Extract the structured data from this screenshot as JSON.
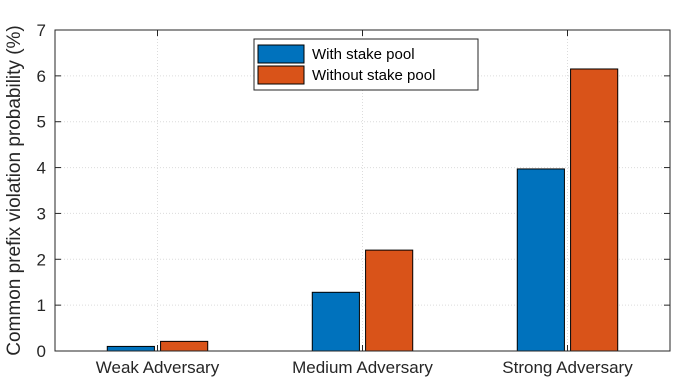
{
  "chart_data": {
    "type": "bar",
    "categories": [
      "Weak Adversary",
      "Medium Adversary",
      "Strong Adversary"
    ],
    "series": [
      {
        "name": "With stake pool",
        "values": [
          0.1,
          1.28,
          3.97
        ],
        "color": "#0072BD"
      },
      {
        "name": "Without stake pool",
        "values": [
          0.21,
          2.2,
          6.15
        ],
        "color": "#D95319"
      }
    ],
    "title": "",
    "xlabel": "",
    "ylabel": "Common prefix violation probability (%)",
    "ylim": [
      0,
      7
    ],
    "yticks": [
      0,
      1,
      2,
      3,
      4,
      5,
      6,
      7
    ],
    "grid": true,
    "legend_position": "top-center"
  }
}
